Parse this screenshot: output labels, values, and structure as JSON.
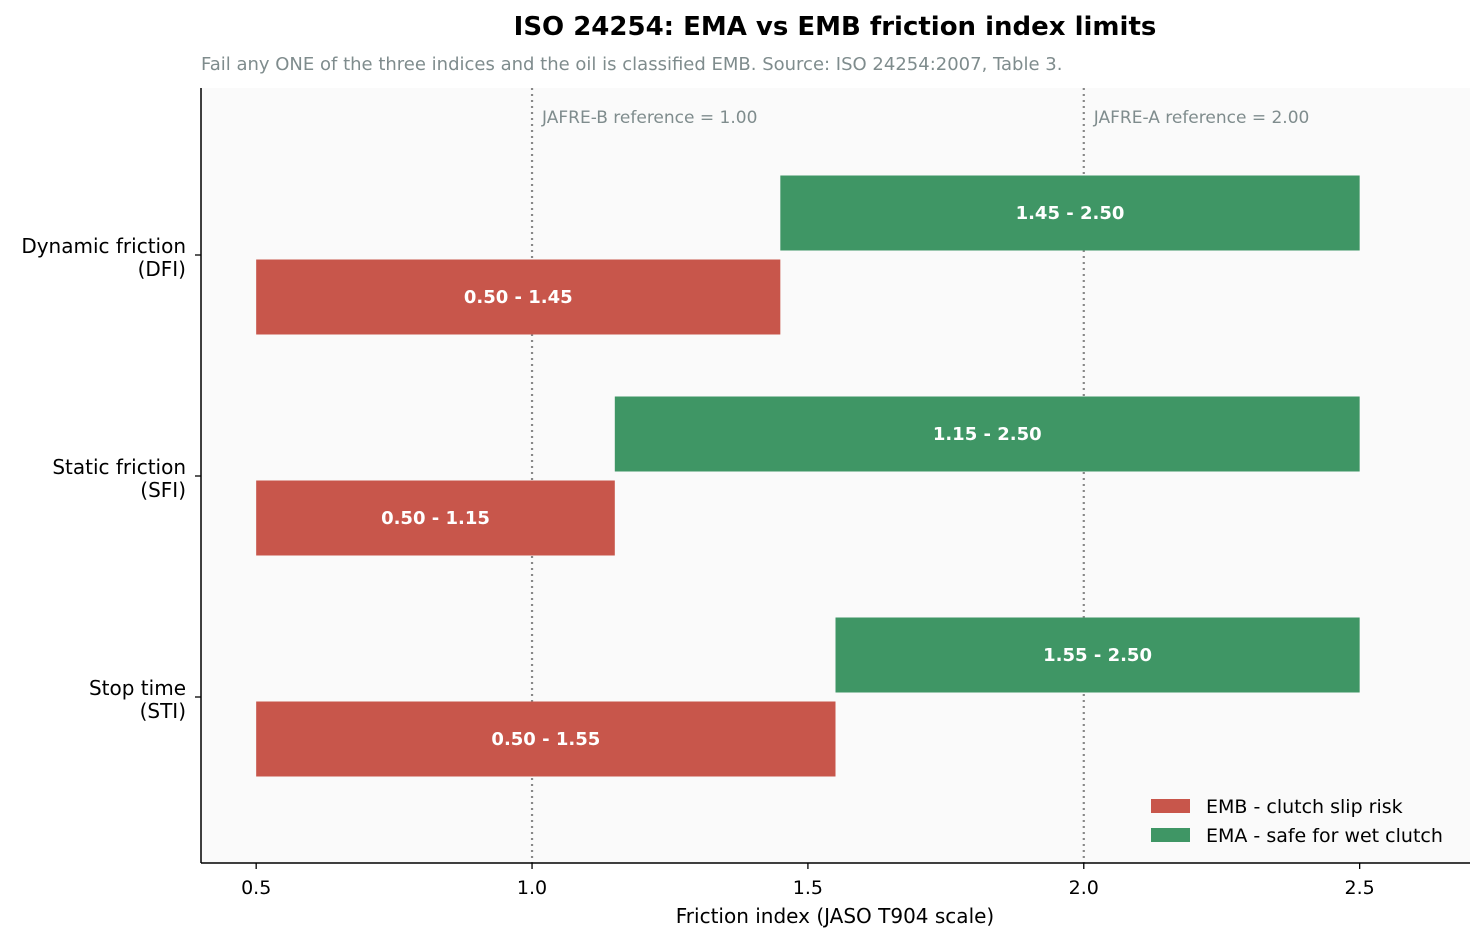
{
  "chart_data": {
    "type": "bar",
    "orientation": "horizontal",
    "title": "ISO 24254: EMA vs EMB friction index limits",
    "subtitle": "Fail any ONE of the three indices and the oil is classified EMB. Source: ISO 24254:2007, Table 3.",
    "xlabel": "Friction index (JASO T904 scale)",
    "ylabel": "",
    "xlim": [
      0.4,
      2.7
    ],
    "xticks": [
      0.5,
      1.0,
      1.5,
      2.0,
      2.5
    ],
    "xtick_labels": [
      "0.5",
      "1.0",
      "1.5",
      "2.0",
      "2.5"
    ],
    "grid": false,
    "legend_position": "bottom-right",
    "categories": [
      {
        "line1": "Dynamic friction",
        "line2": "(DFI)"
      },
      {
        "line1": "Static friction",
        "line2": "(SFI)"
      },
      {
        "line1": "Stop time",
        "line2": "(STI)"
      }
    ],
    "series": [
      {
        "name": "EMB - clutch slip risk",
        "color": "#c8564b",
        "ranges": [
          [
            0.5,
            1.45
          ],
          [
            0.5,
            1.15
          ],
          [
            0.5,
            1.55
          ]
        ],
        "labels": [
          "0.50 - 1.45",
          "0.50 - 1.15",
          "0.50 - 1.55"
        ]
      },
      {
        "name": "EMA - safe for wet clutch",
        "color": "#3f9665",
        "ranges": [
          [
            1.45,
            2.5
          ],
          [
            1.15,
            2.5
          ],
          [
            1.55,
            2.5
          ]
        ],
        "labels": [
          "1.45 - 2.50",
          "1.15 - 2.50",
          "1.55 - 2.50"
        ]
      }
    ],
    "reference_lines": [
      {
        "x": 1.0,
        "label": "JAFRE-B reference = 1.00"
      },
      {
        "x": 2.0,
        "label": "JAFRE-A reference = 2.00"
      }
    ],
    "colors": {
      "plot_background": "#fafafa",
      "reference_line": "#888888",
      "subtitle": "#7f8c8d",
      "annotation": "#7f8c8d"
    }
  }
}
